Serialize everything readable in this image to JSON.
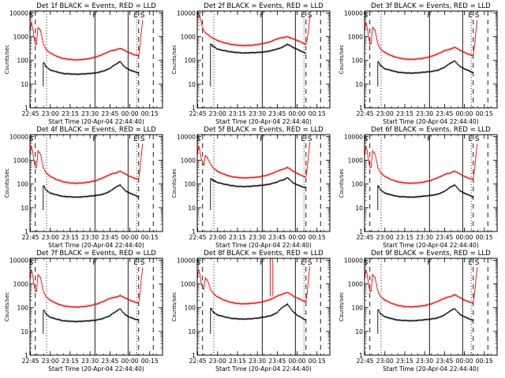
{
  "panels": [
    {
      "title": "Det 1f BLACK = Events, RED = LLD",
      "xlabel": "Start Time (20-Apr-04 22:44:40)",
      "ylabel": "Counts/sec"
    },
    {
      "title": "Det 2f BLACK = Events, RED = LLD",
      "xlabel": "Start Time (20-Apr-04 22:44:40)",
      "ylabel": "Counts/sec"
    },
    {
      "title": "Det 3f BLACK = Events, RED = LLD",
      "xlabel": "Start Time (20-Apr-04 22:44:40)",
      "ylabel": "Counts/sec"
    },
    {
      "title": "Det 4f BLACK = Events, RED = LLD",
      "xlabel": "Start Time (20-Apr-04 22:44:40)",
      "ylabel": "Counts/sec"
    },
    {
      "title": "Det 5f BLACK = Events, RED = LLD",
      "xlabel": "Start Time (20-Apr-04 22:44:40)",
      "ylabel": "Counts/sec"
    },
    {
      "title": "Det 6f BLACK = Events, RED = LLD",
      "xlabel": "Start Time (20-Apr-04 22:44:40)",
      "ylabel": "Counts/sec"
    },
    {
      "title": "Det 7f BLACK = Events, RED = LLD",
      "xlabel": "Start Time (20-Apr-04 22:44:40)",
      "ylabel": "Counts/sec"
    },
    {
      "title": "Det 8f BLACK = Events, RED = LLD",
      "xlabel": "Start Time (20-Apr-04 22:44:40)",
      "ylabel": "Counts/sec"
    },
    {
      "title": "Det 9f BLACK = Events, RED = LLD",
      "xlabel": "Start Time (20-Apr-04 22:44:40)",
      "ylabel": "Counts/sec"
    }
  ],
  "colors": {
    "events": "#000000",
    "lld": "#ff0000",
    "axes": "#000000"
  },
  "chart_data": {
    "type": "line",
    "layout": "3x3 grid",
    "x_tick_labels": [
      "22:45",
      "23:00",
      "23:15",
      "23:30",
      "23:45",
      "00:00",
      "00:15"
    ],
    "x_ticks_minutes": [
      0.33,
      15.33,
      30.33,
      45.33,
      60.33,
      75.33,
      90.33
    ],
    "xlim_minutes": [
      0,
      100
    ],
    "y_tick_labels": [
      "1",
      "10",
      "100",
      "1000",
      "10000"
    ],
    "ylim": [
      1,
      12000
    ],
    "y_scale": "log",
    "markers": [
      {
        "label": "S",
        "minute": 1
      },
      {
        "label": "F",
        "minute": 49
      },
      {
        "label": "E",
        "minute": 80
      },
      {
        "label": "S",
        "minute": 85
      }
    ],
    "vertical_lines": {
      "dashed_minutes": [
        4,
        82,
        93
      ],
      "dotted_minutes": [
        12.5,
        80.5
      ],
      "solid_minutes": [
        49,
        74
      ]
    },
    "series": [
      {
        "key": "events",
        "color": "#000000",
        "x": [
          10,
          11,
          11.5,
          13,
          15,
          20,
          25,
          30,
          35,
          40,
          45,
          50,
          55,
          60,
          62,
          65,
          68,
          70,
          72,
          75,
          78,
          80,
          82
        ],
        "values_by_detector": [
          [
            80,
            75,
            60,
            50,
            40,
            33,
            28,
            27,
            26,
            27,
            28,
            30,
            35,
            45,
            55,
            70,
            90,
            65,
            50,
            40,
            35,
            32,
            30
          ],
          [
            500,
            450,
            400,
            370,
            300,
            260,
            230,
            215,
            205,
            210,
            215,
            225,
            250,
            300,
            320,
            380,
            480,
            420,
            360,
            300,
            250,
            220,
            200
          ],
          [
            90,
            80,
            65,
            55,
            45,
            38,
            32,
            30,
            29,
            30,
            32,
            34,
            38,
            50,
            60,
            78,
            95,
            72,
            55,
            45,
            38,
            34,
            30
          ],
          [
            85,
            75,
            60,
            52,
            42,
            35,
            30,
            29,
            28,
            29,
            31,
            33,
            37,
            48,
            58,
            75,
            92,
            68,
            52,
            42,
            36,
            32,
            28
          ],
          [
            170,
            160,
            145,
            135,
            118,
            100,
            88,
            80,
            78,
            80,
            85,
            90,
            100,
            120,
            135,
            150,
            185,
            150,
            115,
            95,
            82,
            75,
            68
          ],
          [
            85,
            75,
            60,
            52,
            42,
            35,
            30,
            29,
            28,
            29,
            31,
            33,
            37,
            48,
            58,
            75,
            92,
            68,
            52,
            42,
            36,
            32,
            28
          ],
          [
            80,
            75,
            60,
            50,
            40,
            33,
            28,
            27,
            26,
            27,
            28,
            30,
            35,
            45,
            55,
            70,
            90,
            65,
            50,
            40,
            35,
            32,
            30
          ],
          [
            95,
            85,
            70,
            60,
            50,
            42,
            36,
            34,
            33,
            34,
            36,
            40,
            45,
            60,
            80,
            110,
            140,
            100,
            70,
            50,
            40,
            34,
            30
          ],
          [
            85,
            75,
            60,
            52,
            42,
            35,
            30,
            29,
            28,
            29,
            31,
            33,
            37,
            48,
            58,
            75,
            92,
            68,
            52,
            42,
            36,
            32,
            28
          ]
        ]
      },
      {
        "key": "lld",
        "color": "#ff0000",
        "x": [
          0,
          1,
          2,
          3,
          4,
          5,
          6,
          8,
          10,
          12,
          15,
          20,
          25,
          30,
          35,
          40,
          45,
          50,
          55,
          60,
          62,
          65,
          68,
          70,
          72,
          75,
          78,
          80,
          82,
          83,
          84,
          85
        ],
        "values_by_detector": [
          [
            1500,
            4000,
            2500,
            1000,
            500,
            500,
            2500,
            1800,
            500,
            300,
            210,
            150,
            120,
            110,
            105,
            110,
            120,
            140,
            180,
            240,
            260,
            280,
            320,
            290,
            250,
            210,
            180,
            165,
            160,
            400,
            1500,
            5000
          ],
          [
            8000,
            9000,
            7000,
            4000,
            2500,
            1800,
            1500,
            1200,
            1000,
            850,
            700,
            560,
            480,
            440,
            420,
            430,
            460,
            520,
            600,
            800,
            860,
            920,
            1000,
            900,
            820,
            700,
            600,
            520,
            480,
            800,
            2000,
            8000
          ],
          [
            1500,
            4000,
            2500,
            1000,
            500,
            500,
            2500,
            1800,
            500,
            300,
            220,
            160,
            130,
            115,
            110,
            115,
            125,
            145,
            185,
            250,
            275,
            300,
            360,
            310,
            270,
            220,
            185,
            170,
            160,
            420,
            1600,
            5000
          ],
          [
            1500,
            4000,
            2500,
            1000,
            500,
            500,
            2500,
            1800,
            500,
            300,
            215,
            155,
            125,
            112,
            108,
            112,
            122,
            142,
            182,
            245,
            270,
            295,
            350,
            305,
            265,
            215,
            182,
            168,
            158,
            410,
            1550,
            5000
          ],
          [
            1500,
            4000,
            2500,
            1200,
            800,
            600,
            1600,
            1200,
            700,
            480,
            350,
            260,
            210,
            190,
            180,
            185,
            195,
            215,
            260,
            340,
            380,
            420,
            500,
            430,
            360,
            290,
            240,
            210,
            200,
            500,
            1800,
            6000
          ],
          [
            1500,
            4000,
            2500,
            1000,
            500,
            500,
            2500,
            1800,
            500,
            300,
            215,
            155,
            125,
            112,
            108,
            112,
            122,
            142,
            182,
            245,
            270,
            295,
            350,
            305,
            265,
            215,
            182,
            168,
            158,
            410,
            1550,
            5000
          ],
          [
            1500,
            4000,
            2500,
            1000,
            500,
            500,
            2500,
            1800,
            500,
            300,
            210,
            150,
            120,
            110,
            105,
            110,
            120,
            140,
            180,
            240,
            260,
            280,
            320,
            290,
            250,
            210,
            180,
            165,
            160,
            400,
            1500,
            5000
          ],
          [
            1500,
            4000,
            2500,
            1100,
            700,
            600,
            1800,
            1300,
            600,
            400,
            290,
            210,
            170,
            150,
            145,
            150,
            160,
            180,
            220,
            300,
            340,
            380,
            440,
            380,
            320,
            260,
            220,
            190,
            180,
            450,
            1700,
            5500
          ],
          [
            1500,
            4000,
            2500,
            1000,
            500,
            500,
            2500,
            1800,
            500,
            300,
            215,
            155,
            125,
            112,
            108,
            112,
            122,
            142,
            182,
            245,
            270,
            295,
            350,
            305,
            265,
            215,
            182,
            168,
            158,
            410,
            1550,
            5000
          ]
        ]
      }
    ],
    "lld_spikes_detector_8_minutes": [
      55,
      57
    ]
  }
}
